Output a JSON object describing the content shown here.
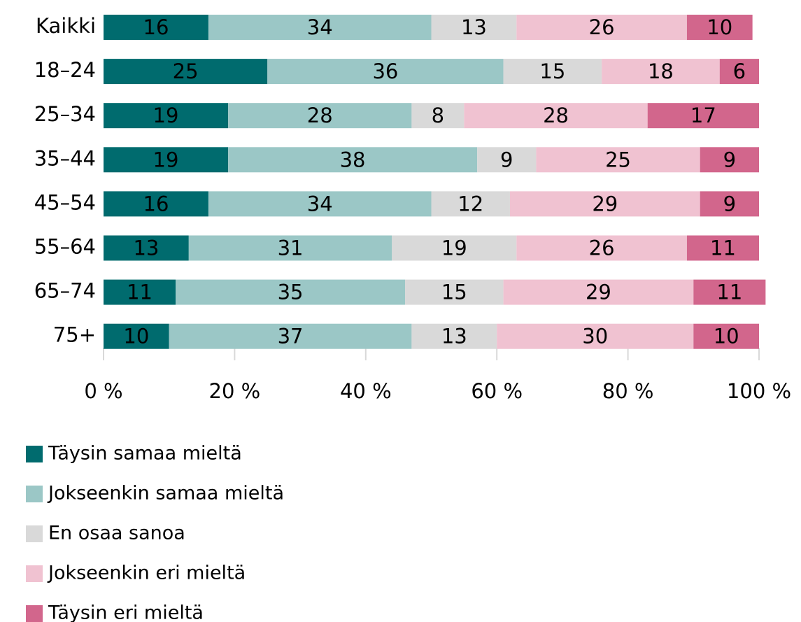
{
  "chart_data": {
    "type": "bar",
    "orientation": "horizontal",
    "stacked": true,
    "categories": [
      "Kaikki",
      "18–24",
      "25–34",
      "35–44",
      "45–54",
      "55–64",
      "65–74",
      "75+"
    ],
    "series": [
      {
        "name": "Täysin samaa mieltä",
        "color": "#006b6e",
        "values": [
          16,
          25,
          19,
          19,
          16,
          13,
          11,
          10
        ]
      },
      {
        "name": "Jokseenkin samaa mieltä",
        "color": "#9bc7c6",
        "values": [
          34,
          36,
          28,
          38,
          34,
          31,
          35,
          37
        ]
      },
      {
        "name": "En osaa sanoa",
        "color": "#d9d9d9",
        "values": [
          13,
          15,
          8,
          9,
          12,
          19,
          15,
          13
        ]
      },
      {
        "name": "Jokseenkin eri mieltä",
        "color": "#f0c2d1",
        "values": [
          26,
          18,
          28,
          25,
          29,
          26,
          29,
          30
        ]
      },
      {
        "name": "Täysin eri mieltä",
        "color": "#d2668c",
        "values": [
          10,
          6,
          17,
          9,
          9,
          11,
          11,
          10
        ]
      }
    ],
    "xlim": [
      0,
      100
    ],
    "xticks": [
      {
        "value": 0,
        "label": "0 %"
      },
      {
        "value": 20,
        "label": "20 %"
      },
      {
        "value": 40,
        "label": "40 %"
      },
      {
        "value": 60,
        "label": "60 %"
      },
      {
        "value": 80,
        "label": "80 %"
      },
      {
        "value": 100,
        "label": "100 %"
      }
    ],
    "legend": "bottom-left"
  }
}
